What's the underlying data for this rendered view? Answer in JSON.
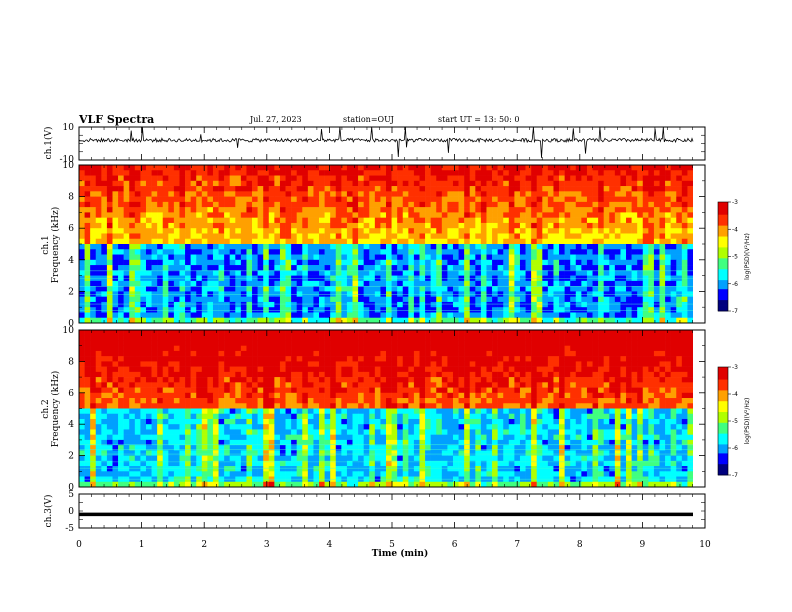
{
  "header": {
    "title": "VLF Spectra",
    "date": "Jul. 27, 2023",
    "station": "station=OUJ",
    "start": "start UT =  13: 50: 0"
  },
  "chart_data": [
    {
      "type": "line",
      "ylabel": "ch.1(V)",
      "ylim": [
        -10,
        10
      ],
      "yticks": [
        "10",
        "-10"
      ],
      "xlim": [
        0,
        10
      ],
      "note": "noisy waveform hovering around +2 V"
    },
    {
      "type": "heatmap",
      "ylabel": "ch.1\nFrequency (kHz)",
      "ylim": [
        0,
        10
      ],
      "yticks": [
        "0",
        "2",
        "4",
        "6",
        "8",
        "10"
      ],
      "xlim": [
        0,
        9.8
      ],
      "colorbar": {
        "label": "log(PSD)(V²/Hz)",
        "range": [
          -7,
          -3
        ],
        "ticks": [
          "-3",
          "-4",
          "-5",
          "-6",
          "-7"
        ]
      },
      "description": "high-frequency band (5-10 kHz) predominantly red/yellow, low band (0-5 kHz) blue/cyan with vertical impulsive streaks"
    },
    {
      "type": "heatmap",
      "ylabel": "ch.2\nFrequency (kHz)",
      "ylim": [
        0,
        10
      ],
      "yticks": [
        "0",
        "2",
        "4",
        "6",
        "8",
        "10"
      ],
      "xlim": [
        0,
        9.8
      ],
      "colorbar": {
        "label": "log(PSD)(V²/Hz)",
        "range": [
          -7,
          -3
        ],
        "ticks": [
          "-3",
          "-4",
          "-5",
          "-6",
          "-7"
        ]
      },
      "description": "strong red above ~5 kHz, green/cyan/blue below with many vertical streaks"
    },
    {
      "type": "line",
      "ylabel": "ch.3(V)",
      "ylim": [
        -5,
        5
      ],
      "yticks": [
        "5",
        "0",
        "-5"
      ],
      "xlim": [
        0,
        10
      ],
      "xlabel": "Time (min)",
      "xticks": [
        "0",
        "1",
        "2",
        "3",
        "4",
        "5",
        "6",
        "7",
        "8",
        "9",
        "10"
      ],
      "note": "flat line at about -1 V"
    }
  ],
  "colors": {
    "scale": [
      "#00007f",
      "#0000ff",
      "#00a0ff",
      "#00ffff",
      "#40ff80",
      "#b0ff00",
      "#ffff00",
      "#ffa000",
      "#ff3000",
      "#e00000"
    ]
  }
}
